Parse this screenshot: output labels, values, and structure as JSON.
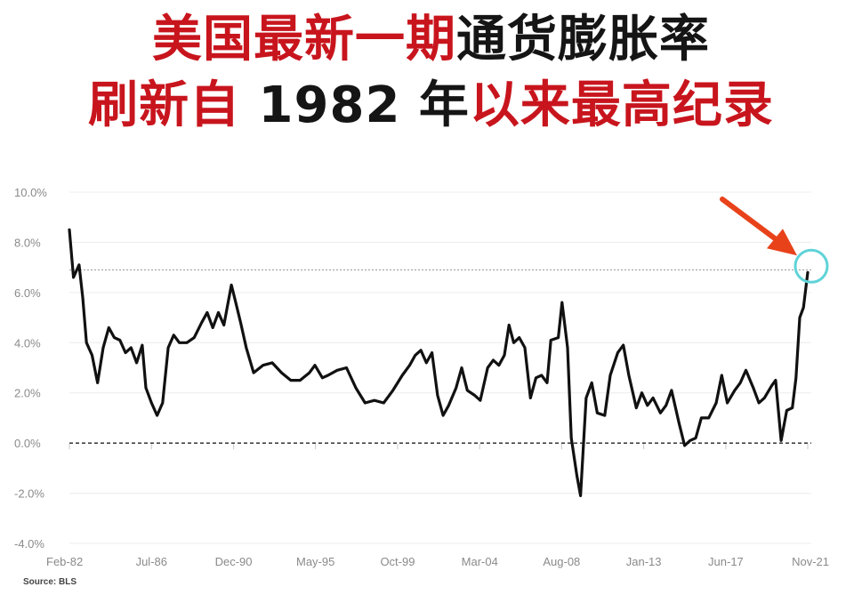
{
  "title": {
    "line1": [
      {
        "text": "美国",
        "color": "#c8151d"
      },
      {
        "text": "最新",
        "color": "#c8151d"
      },
      {
        "text": "一期",
        "color": "#c8151d"
      },
      {
        "text": "通货膨胀率",
        "color": "#151515"
      }
    ],
    "line2": [
      {
        "text": "刷新自",
        "color": "#c8151d"
      },
      {
        "text": " 1982 年",
        "color": "#151515"
      },
      {
        "text": "以来最高纪录",
        "color": "#c8151d"
      }
    ]
  },
  "chart_data": {
    "type": "line",
    "ylim": [
      -4,
      10
    ],
    "yticks": [
      10,
      8,
      6,
      4,
      2,
      0,
      -2,
      -4
    ],
    "ytick_labels": [
      "10.0%",
      "8.0%",
      "6.0%",
      "4.0%",
      "2.0%",
      "0.0%",
      "-2.0%",
      "-4.0%"
    ],
    "xlim": [
      1982.08,
      2021.83
    ],
    "xticks": [
      1982.08,
      1986.5,
      1990.92,
      1995.33,
      1999.75,
      2004.17,
      2008.58,
      2013.0,
      2017.42,
      2021.83
    ],
    "xtick_labels": [
      "Feb-82",
      "Jul-86",
      "Dec-90",
      "May-95",
      "Oct-99",
      "Mar-04",
      "Aug-08",
      "Jan-13",
      "Jun-17",
      "Nov-21"
    ],
    "zero_line": 0,
    "reference_line": 6.9,
    "grid": true,
    "source": "Source: BLS",
    "series": [
      {
        "color": "#111111",
        "points": [
          [
            1982.08,
            8.5
          ],
          [
            1982.3,
            6.6
          ],
          [
            1982.6,
            7.1
          ],
          [
            1982.8,
            5.8
          ],
          [
            1983.0,
            4.0
          ],
          [
            1983.3,
            3.5
          ],
          [
            1983.6,
            2.4
          ],
          [
            1983.9,
            3.8
          ],
          [
            1984.2,
            4.6
          ],
          [
            1984.5,
            4.2
          ],
          [
            1984.8,
            4.1
          ],
          [
            1985.1,
            3.6
          ],
          [
            1985.4,
            3.8
          ],
          [
            1985.7,
            3.2
          ],
          [
            1986.0,
            3.9
          ],
          [
            1986.2,
            2.2
          ],
          [
            1986.5,
            1.6
          ],
          [
            1986.8,
            1.1
          ],
          [
            1987.1,
            1.6
          ],
          [
            1987.4,
            3.8
          ],
          [
            1987.7,
            4.3
          ],
          [
            1988.0,
            4.0
          ],
          [
            1988.4,
            4.0
          ],
          [
            1988.8,
            4.2
          ],
          [
            1989.2,
            4.8
          ],
          [
            1989.5,
            5.2
          ],
          [
            1989.8,
            4.6
          ],
          [
            1990.1,
            5.2
          ],
          [
            1990.4,
            4.7
          ],
          [
            1990.8,
            6.3
          ],
          [
            1991.0,
            5.7
          ],
          [
            1991.3,
            4.8
          ],
          [
            1991.6,
            3.8
          ],
          [
            1992.0,
            2.8
          ],
          [
            1992.5,
            3.1
          ],
          [
            1993.0,
            3.2
          ],
          [
            1993.5,
            2.8
          ],
          [
            1994.0,
            2.5
          ],
          [
            1994.5,
            2.5
          ],
          [
            1995.0,
            2.8
          ],
          [
            1995.3,
            3.1
          ],
          [
            1995.7,
            2.6
          ],
          [
            1996.0,
            2.7
          ],
          [
            1996.5,
            2.9
          ],
          [
            1997.0,
            3.0
          ],
          [
            1997.5,
            2.2
          ],
          [
            1998.0,
            1.6
          ],
          [
            1998.5,
            1.7
          ],
          [
            1999.0,
            1.6
          ],
          [
            1999.5,
            2.1
          ],
          [
            2000.0,
            2.7
          ],
          [
            2000.4,
            3.1
          ],
          [
            2000.7,
            3.5
          ],
          [
            2001.0,
            3.7
          ],
          [
            2001.3,
            3.2
          ],
          [
            2001.6,
            3.6
          ],
          [
            2001.9,
            1.9
          ],
          [
            2002.2,
            1.1
          ],
          [
            2002.5,
            1.5
          ],
          [
            2002.9,
            2.2
          ],
          [
            2003.2,
            3.0
          ],
          [
            2003.5,
            2.1
          ],
          [
            2003.9,
            1.9
          ],
          [
            2004.2,
            1.7
          ],
          [
            2004.6,
            3.0
          ],
          [
            2004.9,
            3.3
          ],
          [
            2005.2,
            3.1
          ],
          [
            2005.5,
            3.5
          ],
          [
            2005.75,
            4.7
          ],
          [
            2006.0,
            4.0
          ],
          [
            2006.3,
            4.2
          ],
          [
            2006.6,
            3.8
          ],
          [
            2006.9,
            1.8
          ],
          [
            2007.2,
            2.6
          ],
          [
            2007.5,
            2.7
          ],
          [
            2007.8,
            2.4
          ],
          [
            2008.0,
            4.1
          ],
          [
            2008.4,
            4.2
          ],
          [
            2008.6,
            5.6
          ],
          [
            2008.9,
            3.8
          ],
          [
            2009.1,
            0.2
          ],
          [
            2009.4,
            -1.3
          ],
          [
            2009.6,
            -2.1
          ],
          [
            2009.9,
            1.8
          ],
          [
            2010.2,
            2.4
          ],
          [
            2010.5,
            1.2
          ],
          [
            2010.9,
            1.1
          ],
          [
            2011.2,
            2.7
          ],
          [
            2011.6,
            3.6
          ],
          [
            2011.9,
            3.9
          ],
          [
            2012.2,
            2.7
          ],
          [
            2012.6,
            1.4
          ],
          [
            2012.9,
            2.0
          ],
          [
            2013.2,
            1.5
          ],
          [
            2013.5,
            1.8
          ],
          [
            2013.9,
            1.2
          ],
          [
            2014.2,
            1.5
          ],
          [
            2014.5,
            2.1
          ],
          [
            2014.9,
            0.8
          ],
          [
            2015.2,
            -0.1
          ],
          [
            2015.5,
            0.1
          ],
          [
            2015.8,
            0.2
          ],
          [
            2016.1,
            1.0
          ],
          [
            2016.5,
            1.0
          ],
          [
            2016.9,
            1.6
          ],
          [
            2017.2,
            2.7
          ],
          [
            2017.5,
            1.6
          ],
          [
            2017.9,
            2.1
          ],
          [
            2018.2,
            2.4
          ],
          [
            2018.5,
            2.9
          ],
          [
            2018.9,
            2.2
          ],
          [
            2019.2,
            1.6
          ],
          [
            2019.5,
            1.8
          ],
          [
            2019.9,
            2.3
          ],
          [
            2020.1,
            2.5
          ],
          [
            2020.4,
            0.1
          ],
          [
            2020.7,
            1.3
          ],
          [
            2021.0,
            1.4
          ],
          [
            2021.2,
            2.6
          ],
          [
            2021.4,
            5.0
          ],
          [
            2021.6,
            5.4
          ],
          [
            2021.83,
            6.8
          ]
        ]
      }
    ],
    "annotation": {
      "type": "arrow-and-circle",
      "at": [
        2021.83,
        6.8
      ],
      "arrow_color": "#e8421b",
      "circle_color": "#5fd3d8"
    }
  }
}
